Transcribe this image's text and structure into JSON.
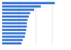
{
  "chart_data": {
    "type": "bar",
    "orientation": "horizontal",
    "categories": [
      null,
      null,
      null,
      null,
      null,
      null,
      null,
      null,
      null,
      null,
      null,
      null,
      null
    ],
    "values": [
      79,
      58,
      48,
      42,
      40,
      38,
      37,
      37,
      36,
      35,
      34,
      31,
      29
    ],
    "color": "#3a78d8",
    "xlim": [
      0,
      100
    ],
    "xticks": [
      0,
      25,
      50,
      75,
      100
    ],
    "grid": true,
    "tick_labels": false
  }
}
